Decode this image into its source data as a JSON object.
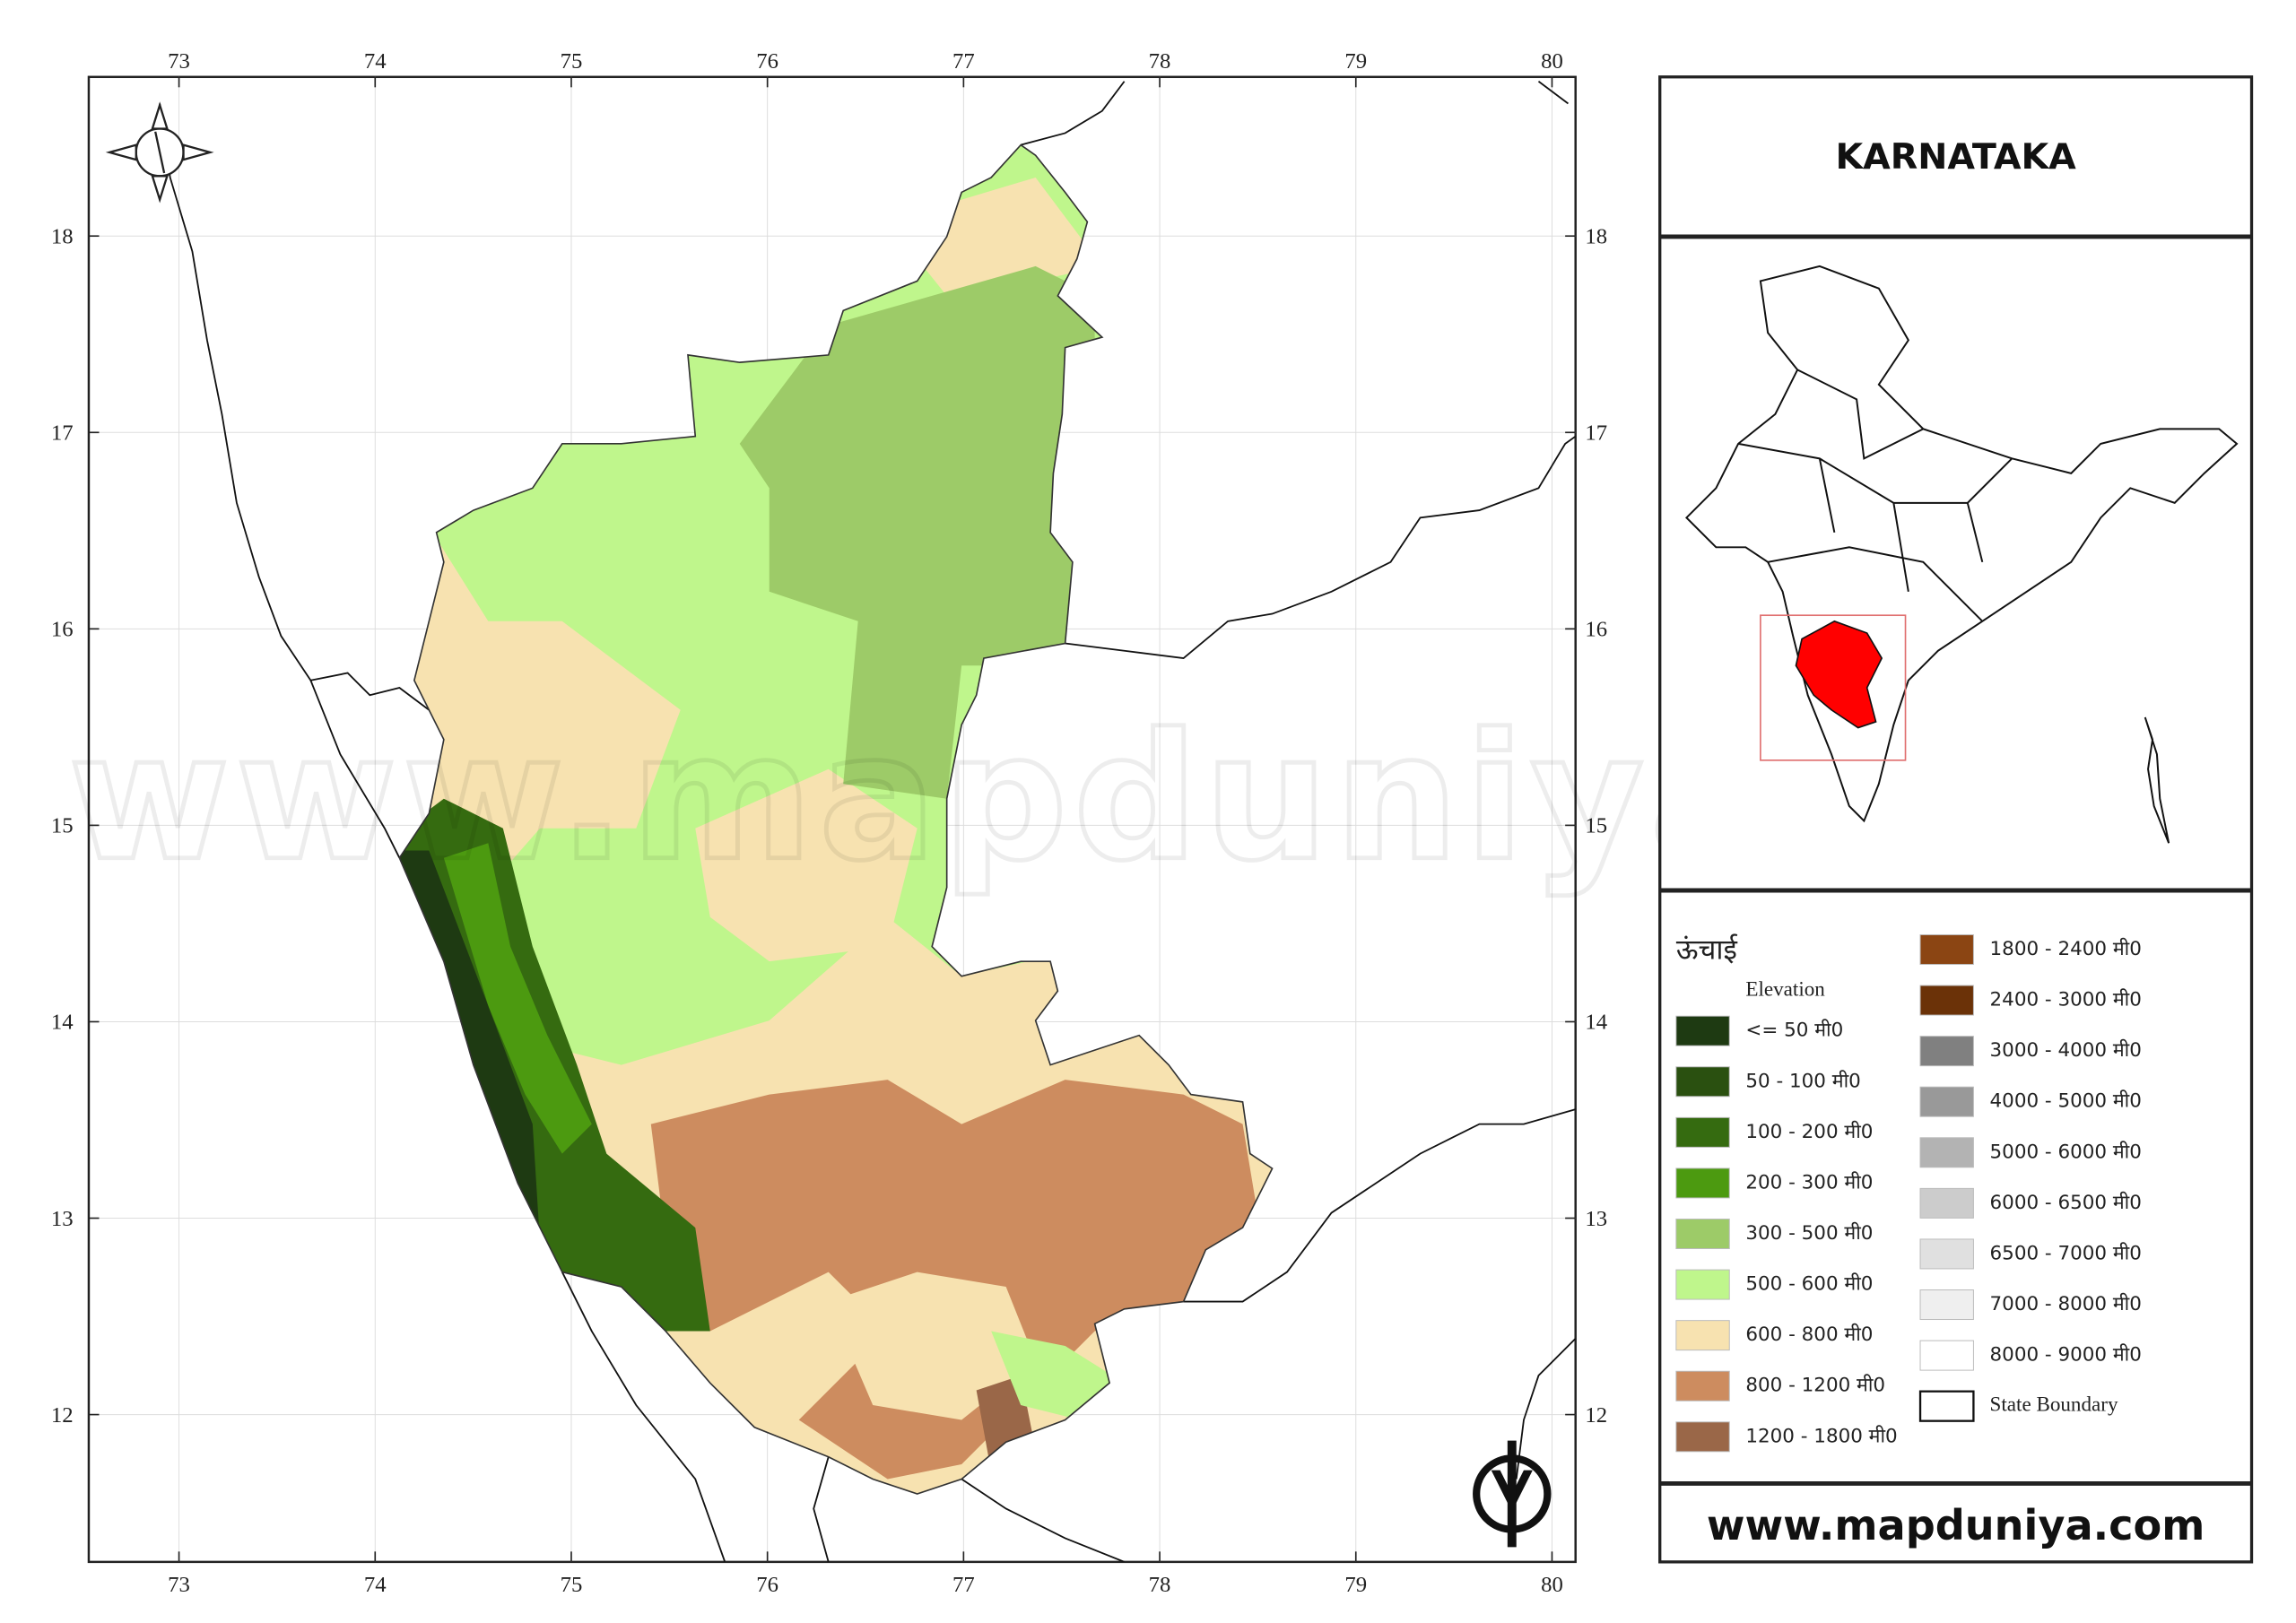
{
  "map": {
    "title": "KARNATAKA",
    "website": "www.mapduniya.com",
    "watermark": "www.mapduniya.com",
    "legend_title": "ऊंचाई",
    "legend_subtitle": "Elevation",
    "xlim": [
      72.54,
      80.12
    ],
    "ylim": [
      11.25,
      18.81
    ],
    "xticks": [
      73,
      74,
      75,
      76,
      77,
      78,
      79,
      80
    ],
    "yticks": [
      12,
      13,
      14,
      15,
      16,
      17,
      18
    ],
    "grid": true,
    "legend": [
      {
        "label": "<= 50 मी0",
        "color": "#1e3a12"
      },
      {
        "label": "50 - 100 मी0",
        "color": "#2a5010"
      },
      {
        "label": "100 - 200 मी0",
        "color": "#356b10"
      },
      {
        "label": "200 - 300 मी0",
        "color": "#4c9a10"
      },
      {
        "label": "300 - 500 मी0",
        "color": "#9dcb68"
      },
      {
        "label": "500 - 600 मी0",
        "color": "#bff68c"
      },
      {
        "label": "600 - 800 मी0",
        "color": "#f7e2b0"
      },
      {
        "label": "800 - 1200 मी0",
        "color": "#cd8c5f"
      },
      {
        "label": "1200 - 1800 मी0",
        "color": "#9a6748"
      },
      {
        "label": "1800 - 2400 मी0",
        "color": "#8b4513"
      },
      {
        "label": "2400 - 3000 मी0",
        "color": "#6b3208"
      },
      {
        "label": "3000 - 4000 मी0",
        "color": "#808080"
      },
      {
        "label": "4000 - 5000 मी0",
        "color": "#999999"
      },
      {
        "label": "5000 - 6000 मी0",
        "color": "#b3b3b3"
      },
      {
        "label": "6000 - 6500 मी0",
        "color": "#cccccc"
      },
      {
        "label": "6500 - 7000 मी0",
        "color": "#e0e0e0"
      },
      {
        "label": "7000 - 8000 मी0",
        "color": "#efefef"
      },
      {
        "label": "8000 - 9000 मी0",
        "color": "#ffffff"
      },
      {
        "label": "State Boundary",
        "color": "#ffffff"
      }
    ]
  }
}
